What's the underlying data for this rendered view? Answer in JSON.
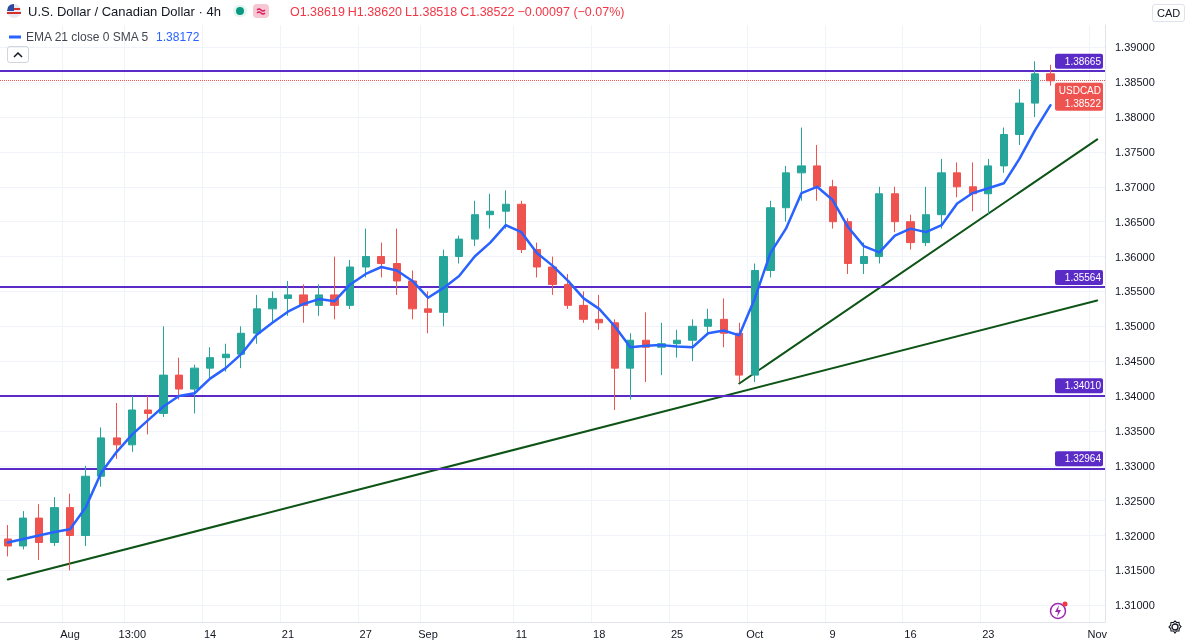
{
  "chart_data": {
    "type": "candlestick",
    "title": "U.S. Dollar / Canadian Dollar · 4h",
    "annotations": [
      "O1.38619",
      "H1.38620",
      "L1.38518",
      "C1.38522",
      "−0.00097 (−0.07%)",
      "1.38172",
      "CAD"
    ],
    "categories": [
      null,
      null,
      null,
      null,
      "Aug",
      null,
      null,
      null,
      "13:00",
      null,
      null,
      null,
      null,
      "14",
      null,
      null,
      null,
      null,
      "21",
      null,
      null,
      null,
      null,
      "27",
      null,
      null,
      null,
      "Sep",
      null,
      null,
      null,
      null,
      null,
      "11",
      null,
      null,
      null,
      null,
      "18",
      null,
      null,
      null,
      null,
      "25",
      null,
      null,
      null,
      null,
      "Oct",
      null,
      null,
      null,
      null,
      "9",
      null,
      null,
      null,
      null,
      "16",
      null,
      null,
      null,
      null,
      "23",
      null,
      null,
      null,
      null,
      null,
      null,
      "Nov"
    ],
    "ohlc": [
      [
        1.3195,
        1.3215,
        1.317,
        1.3185
      ],
      [
        1.3185,
        1.3235,
        1.318,
        1.3225
      ],
      [
        1.3225,
        1.3245,
        1.3165,
        1.319
      ],
      [
        1.319,
        1.3255,
        1.3185,
        1.324
      ],
      [
        1.324,
        1.326,
        1.315,
        1.32
      ],
      [
        1.32,
        1.33,
        1.3185,
        1.3285
      ],
      [
        1.3285,
        1.3355,
        1.327,
        1.334
      ],
      [
        1.334,
        1.339,
        1.331,
        1.333
      ],
      [
        1.333,
        1.34,
        1.332,
        1.338
      ],
      [
        1.338,
        1.34,
        1.3345,
        1.3375
      ],
      [
        1.3375,
        1.35,
        1.337,
        1.343
      ],
      [
        1.343,
        1.3455,
        1.3395,
        1.341
      ],
      [
        1.341,
        1.3445,
        1.3375,
        1.344
      ],
      [
        1.344,
        1.347,
        1.3425,
        1.3455
      ],
      [
        1.3455,
        1.3475,
        1.3435,
        1.346
      ],
      [
        1.346,
        1.35,
        1.344,
        1.349
      ],
      [
        1.349,
        1.3545,
        1.3475,
        1.3525
      ],
      [
        1.3525,
        1.355,
        1.3505,
        1.354
      ],
      [
        1.354,
        1.3565,
        1.3515,
        1.3545
      ],
      [
        1.3545,
        1.356,
        1.3505,
        1.353
      ],
      [
        1.353,
        1.356,
        1.3515,
        1.3545
      ],
      [
        1.3545,
        1.36,
        1.351,
        1.353
      ],
      [
        1.353,
        1.3595,
        1.3525,
        1.3585
      ],
      [
        1.3585,
        1.364,
        1.357,
        1.36
      ],
      [
        1.36,
        1.362,
        1.357,
        1.359
      ],
      [
        1.359,
        1.364,
        1.3545,
        1.3565
      ],
      [
        1.3565,
        1.358,
        1.351,
        1.3525
      ],
      [
        1.3525,
        1.355,
        1.349,
        1.352
      ],
      [
        1.352,
        1.361,
        1.35,
        1.36
      ],
      [
        1.36,
        1.363,
        1.359,
        1.3625
      ],
      [
        1.3625,
        1.368,
        1.3615,
        1.366
      ],
      [
        1.366,
        1.369,
        1.364,
        1.3665
      ],
      [
        1.3665,
        1.3695,
        1.364,
        1.3675
      ],
      [
        1.3675,
        1.368,
        1.3605,
        1.361
      ],
      [
        1.361,
        1.362,
        1.357,
        1.3585
      ],
      [
        1.3585,
        1.36,
        1.3545,
        1.356
      ],
      [
        1.356,
        1.3575,
        1.3525,
        1.353
      ],
      [
        1.353,
        1.355,
        1.3505,
        1.351
      ],
      [
        1.351,
        1.3545,
        1.3495,
        1.3505
      ],
      [
        1.3505,
        1.351,
        1.338,
        1.344
      ],
      [
        1.344,
        1.349,
        1.3395,
        1.348
      ],
      [
        1.348,
        1.352,
        1.342,
        1.347
      ],
      [
        1.347,
        1.3505,
        1.343,
        1.3475
      ],
      [
        1.3475,
        1.3495,
        1.3455,
        1.348
      ],
      [
        1.348,
        1.351,
        1.345,
        1.35
      ],
      [
        1.35,
        1.3525,
        1.349,
        1.351
      ],
      [
        1.351,
        1.354,
        1.347,
        1.349
      ],
      [
        1.349,
        1.3505,
        1.342,
        1.343
      ],
      [
        1.343,
        1.359,
        1.342,
        1.358
      ],
      [
        1.358,
        1.368,
        1.357,
        1.367
      ],
      [
        1.367,
        1.373,
        1.365,
        1.372
      ],
      [
        1.372,
        1.3785,
        1.368,
        1.373
      ],
      [
        1.373,
        1.376,
        1.368,
        1.37
      ],
      [
        1.37,
        1.371,
        1.364,
        1.365
      ],
      [
        1.365,
        1.3655,
        1.3575,
        1.359
      ],
      [
        1.359,
        1.362,
        1.3575,
        1.36
      ],
      [
        1.36,
        1.37,
        1.359,
        1.369
      ],
      [
        1.369,
        1.37,
        1.3635,
        1.365
      ],
      [
        1.365,
        1.366,
        1.361,
        1.362
      ],
      [
        1.362,
        1.37,
        1.3615,
        1.366
      ],
      [
        1.366,
        1.374,
        1.364,
        1.372
      ],
      [
        1.372,
        1.3735,
        1.3685,
        1.37
      ],
      [
        1.37,
        1.3735,
        1.3665,
        1.369
      ],
      [
        1.369,
        1.374,
        1.366,
        1.373
      ],
      [
        1.373,
        1.3785,
        1.372,
        1.3775
      ],
      [
        1.3775,
        1.384,
        1.376,
        1.382
      ],
      [
        1.382,
        1.388,
        1.38,
        1.3862
      ],
      [
        1.3862,
        1.3875,
        1.3845,
        1.3852
      ],
      null,
      null,
      null
    ],
    "colors": [
      "#ef5350",
      "#26a69a",
      "#ef5350",
      "#26a69a",
      "#ef5350",
      "#26a69a",
      "#26a69a",
      "#ef5350",
      "#26a69a",
      "#ef5350",
      "#26a69a",
      "#ef5350",
      "#26a69a",
      "#26a69a",
      "#26a69a",
      "#26a69a",
      "#26a69a",
      "#26a69a",
      "#26a69a",
      "#ef5350",
      "#26a69a",
      "#ef5350",
      "#26a69a",
      "#26a69a",
      "#ef5350",
      "#ef5350",
      "#ef5350",
      "#ef5350",
      "#26a69a",
      "#26a69a",
      "#26a69a",
      "#26a69a",
      "#26a69a",
      "#ef5350",
      "#ef5350",
      "#ef5350",
      "#ef5350",
      "#ef5350",
      "#ef5350",
      "#ef5350",
      "#26a69a",
      "#ef5350",
      "#26a69a",
      "#26a69a",
      "#26a69a",
      "#26a69a",
      "#ef5350",
      "#ef5350",
      "#26a69a",
      "#26a69a",
      "#26a69a",
      "#26a69a",
      "#ef5350",
      "#ef5350",
      "#ef5350",
      "#26a69a",
      "#26a69a",
      "#ef5350",
      "#ef5350",
      "#26a69a",
      "#26a69a",
      "#ef5350",
      "#ef5350",
      "#26a69a",
      "#26a69a",
      "#26a69a",
      "#26a69a",
      "#ef5350",
      null,
      null,
      null
    ],
    "series": [
      {
        "type": "line",
        "name": "EMA 21 close 0 SMA 5",
        "color": "#2962ff",
        "values": [
          1.319,
          1.3195,
          1.32,
          1.3205,
          1.3209,
          1.324,
          1.329,
          1.332,
          1.3345,
          1.3365,
          1.3385,
          1.34,
          1.3404,
          1.3425,
          1.344,
          1.346,
          1.3488,
          1.3505,
          1.3521,
          1.3532,
          1.3539,
          1.3536,
          1.356,
          1.3575,
          1.3585,
          1.358,
          1.3565,
          1.3541,
          1.3555,
          1.3572,
          1.36,
          1.362,
          1.3645,
          1.3635,
          1.3605,
          1.3587,
          1.3565,
          1.354,
          1.3525,
          1.35,
          1.347,
          1.3472,
          1.3473,
          1.3471,
          1.347,
          1.349,
          1.3494,
          1.3487,
          1.354,
          1.3605,
          1.364,
          1.3691,
          1.37,
          1.3681,
          1.3642,
          1.3615,
          1.3606,
          1.363,
          1.364,
          1.3635,
          1.3645,
          1.3676,
          1.3691,
          1.3698,
          1.3705,
          1.374,
          1.3781,
          1.3817,
          null,
          null,
          null
        ]
      },
      {
        "type": "line",
        "color": "#0d5416",
        "values": [
          1.3137,
          null,
          null,
          null,
          null,
          null,
          null,
          null,
          null,
          null,
          null,
          null,
          null,
          null,
          null,
          null,
          null,
          null,
          null,
          null,
          null,
          null,
          null,
          null,
          null,
          null,
          null,
          null,
          null,
          null,
          null,
          null,
          null,
          null,
          null,
          null,
          null,
          null,
          null,
          null,
          null,
          null,
          null,
          null,
          null,
          null,
          null,
          null,
          null,
          null,
          null,
          null,
          null,
          null,
          null,
          null,
          null,
          null,
          null,
          null,
          null,
          null,
          null,
          null,
          null,
          null,
          null,
          null,
          null,
          null,
          1.3537
        ]
      },
      {
        "type": "line",
        "color": "#0d5416",
        "values": [
          null,
          null,
          null,
          null,
          null,
          null,
          null,
          null,
          null,
          null,
          null,
          null,
          null,
          null,
          null,
          null,
          null,
          null,
          null,
          null,
          null,
          null,
          null,
          null,
          null,
          null,
          null,
          null,
          null,
          null,
          null,
          null,
          null,
          null,
          null,
          null,
          null,
          null,
          null,
          null,
          null,
          null,
          null,
          null,
          null,
          null,
          null,
          1.3418,
          null,
          null,
          null,
          null,
          null,
          null,
          null,
          null,
          null,
          null,
          null,
          null,
          null,
          null,
          null,
          null,
          null,
          null,
          null,
          null,
          null,
          null,
          1.3768
        ]
      }
    ],
    "ylim": [
      1.3076,
      1.3932
    ],
    "yticks": [
      {
        "value": 1.31,
        "label": "1.31000"
      },
      {
        "value": 1.315,
        "label": "1.31500"
      },
      {
        "value": 1.32,
        "label": "1.32000"
      },
      {
        "value": 1.325,
        "label": "1.32500"
      },
      {
        "value": 1.33,
        "label": "1.33000"
      },
      {
        "value": 1.335,
        "label": "1.33500"
      },
      {
        "value": 1.34,
        "label": "1.34000"
      },
      {
        "value": 1.345,
        "label": "1.34500"
      },
      {
        "value": 1.35,
        "label": "1.35000"
      },
      {
        "value": 1.355,
        "label": "1.35500"
      },
      {
        "value": 1.36,
        "label": "1.36000"
      },
      {
        "value": 1.365,
        "label": "1.36500"
      },
      {
        "value": 1.37,
        "label": "1.37000"
      },
      {
        "value": 1.375,
        "label": "1.37500"
      },
      {
        "value": 1.38,
        "label": "1.38000"
      },
      {
        "value": 1.385,
        "label": "1.38500"
      },
      {
        "value": 1.39,
        "label": "1.39000"
      }
    ],
    "ref_lines": [
      {
        "axis": "y",
        "value": 1.38665,
        "label": "1.38665",
        "color": "#5b2bc7",
        "line_style": "solid"
      },
      {
        "axis": "y",
        "value": 1.35564,
        "label": "1.35564",
        "color": "#5b2bc7",
        "line_style": "solid"
      },
      {
        "axis": "y",
        "value": 1.3401,
        "label": "1.34010",
        "color": "#5b2bc7",
        "line_style": "solid"
      },
      {
        "axis": "y",
        "value": 1.32964,
        "label": "1.32964",
        "color": "#5b2bc7",
        "line_style": "solid"
      },
      {
        "axis": "y",
        "value": 1.38522,
        "label": "USDCAD 1.38522",
        "color": "#ef5350",
        "line_style": "dotted"
      }
    ],
    "grid": true,
    "legend": "top left",
    "marker": "none"
  }
}
